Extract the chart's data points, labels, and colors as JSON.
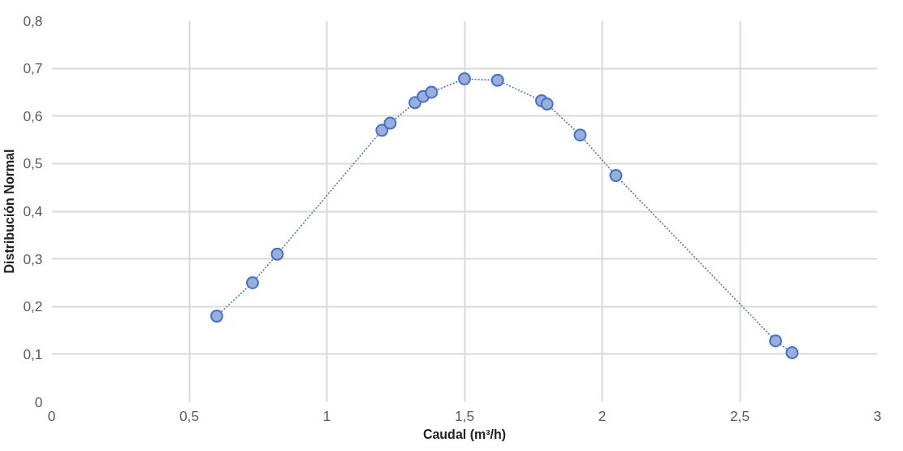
{
  "chart_data": {
    "type": "line",
    "xlabel": "Caudal (m³/h)",
    "ylabel": "Distribución Normal",
    "x": [
      0.6,
      0.73,
      0.82,
      1.2,
      1.23,
      1.32,
      1.35,
      1.38,
      1.5,
      1.62,
      1.78,
      1.8,
      1.92,
      2.05,
      2.63,
      2.69
    ],
    "series": [
      {
        "color": "#4472c4",
        "values": [
          0.18,
          0.25,
          0.31,
          0.57,
          0.585,
          0.628,
          0.641,
          0.65,
          0.678,
          0.675,
          0.632,
          0.625,
          0.56,
          0.475,
          0.128,
          0.103
        ]
      }
    ],
    "xlim": [
      0,
      3
    ],
    "xticks": [
      0,
      {
        "value": 0.5,
        "label": "0,5"
      },
      1,
      {
        "value": 1.5,
        "label": "1,5"
      },
      2,
      {
        "value": 2.5,
        "label": "2,5"
      },
      3
    ],
    "ylim": [
      0,
      0.8
    ],
    "yticks": [
      0,
      {
        "value": 0.1,
        "label": "0,1"
      },
      {
        "value": 0.2,
        "label": "0,2"
      },
      {
        "value": 0.3,
        "label": "0,3"
      },
      {
        "value": 0.4,
        "label": "0,4"
      },
      {
        "value": 0.5,
        "label": "0,5"
      },
      {
        "value": 0.6,
        "label": "0,6"
      },
      {
        "value": 0.7,
        "label": "0,7"
      },
      {
        "value": 0.8,
        "label": "0,8"
      }
    ],
    "grid": true,
    "marker": "circle",
    "line_style": "dotted"
  }
}
